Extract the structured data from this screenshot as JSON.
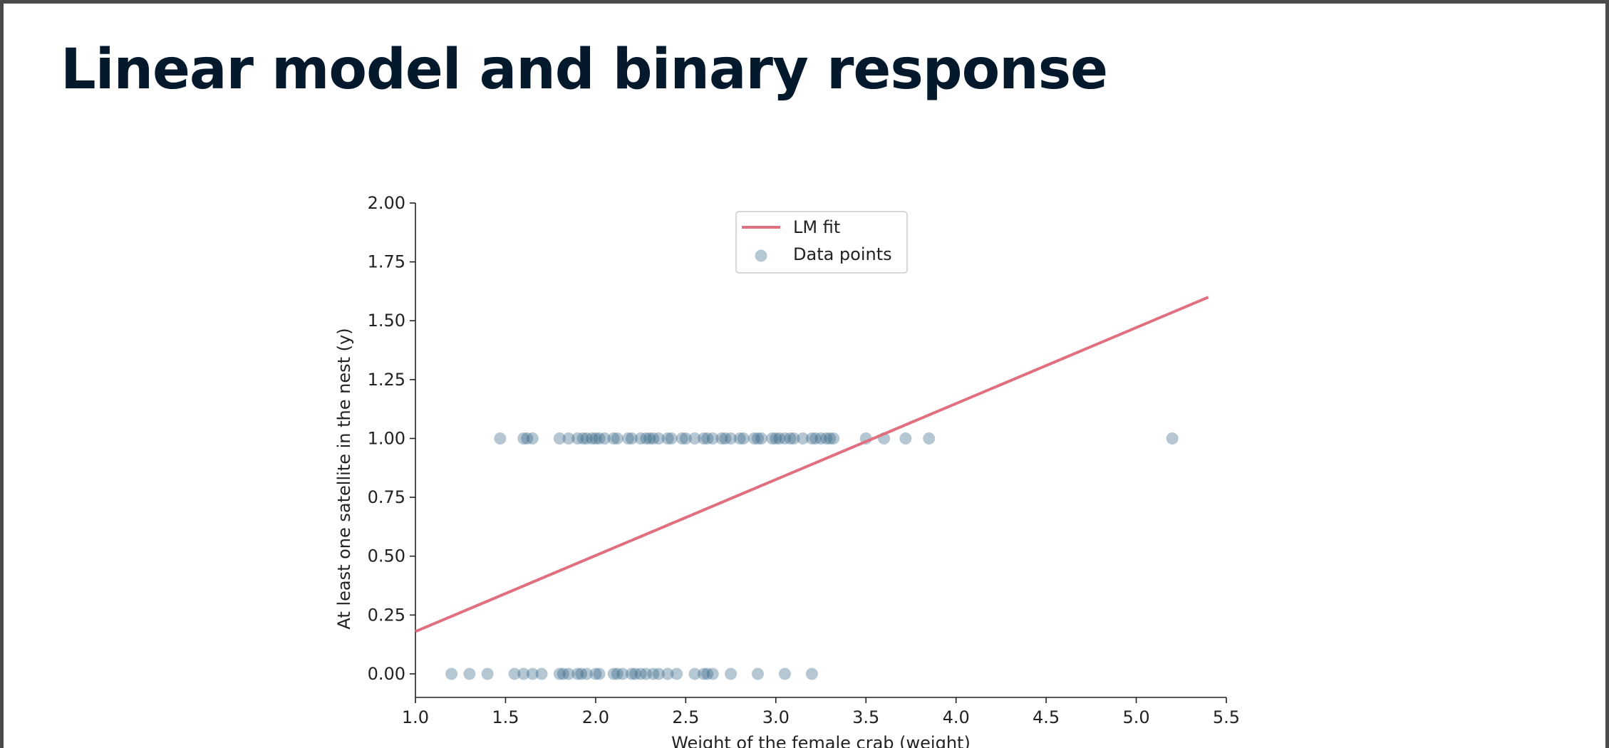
{
  "slide": {
    "title": "Linear model and binary response"
  },
  "colors": {
    "title": "#05192d",
    "fit_line": "#e07080",
    "points": "#2c5f80",
    "axis": "#222222"
  },
  "chart_data": {
    "type": "scatter",
    "title": "",
    "xlabel": "Weight of the female crab (weight)",
    "ylabel": "At least one satellite in the nest (y)",
    "xlim": [
      1.0,
      5.5
    ],
    "ylim": [
      -0.1,
      2.0
    ],
    "xticks": [
      "1.0",
      "1.5",
      "2.0",
      "2.5",
      "3.0",
      "3.5",
      "4.0",
      "4.5",
      "5.0",
      "5.5"
    ],
    "yticks": [
      "0.00",
      "0.25",
      "0.50",
      "0.75",
      "1.00",
      "1.25",
      "1.50",
      "1.75",
      "2.00"
    ],
    "grid": false,
    "legend_position": "top-center",
    "series": [
      {
        "name": "LM fit",
        "kind": "line",
        "x": [
          1.0,
          5.4
        ],
        "y": [
          0.18,
          1.6
        ]
      },
      {
        "name": "Data points",
        "kind": "scatter",
        "x": [
          1.47,
          1.6,
          1.62,
          1.65,
          1.8,
          1.85,
          1.9,
          1.93,
          1.95,
          1.98,
          2.0,
          2.02,
          2.05,
          2.1,
          2.12,
          2.18,
          2.2,
          2.25,
          2.28,
          2.3,
          2.32,
          2.35,
          2.4,
          2.42,
          2.48,
          2.5,
          2.55,
          2.6,
          2.62,
          2.65,
          2.7,
          2.72,
          2.75,
          2.8,
          2.82,
          2.88,
          2.9,
          2.92,
          2.98,
          3.0,
          3.02,
          3.05,
          3.08,
          3.1,
          3.15,
          3.2,
          3.22,
          3.25,
          3.28,
          3.3,
          3.32,
          3.5,
          3.6,
          3.72,
          3.85,
          5.2,
          1.2,
          1.3,
          1.4,
          1.55,
          1.6,
          1.65,
          1.7,
          1.8,
          1.82,
          1.85,
          1.9,
          1.92,
          1.95,
          2.0,
          2.02,
          2.1,
          2.12,
          2.15,
          2.2,
          2.22,
          2.25,
          2.28,
          2.32,
          2.35,
          2.4,
          2.45,
          2.55,
          2.6,
          2.62,
          2.65,
          2.75,
          2.9,
          3.05,
          3.2
        ],
        "y": [
          1,
          1,
          1,
          1,
          1,
          1,
          1,
          1,
          1,
          1,
          1,
          1,
          1,
          1,
          1,
          1,
          1,
          1,
          1,
          1,
          1,
          1,
          1,
          1,
          1,
          1,
          1,
          1,
          1,
          1,
          1,
          1,
          1,
          1,
          1,
          1,
          1,
          1,
          1,
          1,
          1,
          1,
          1,
          1,
          1,
          1,
          1,
          1,
          1,
          1,
          1,
          1,
          1,
          1,
          1,
          1,
          0,
          0,
          0,
          0,
          0,
          0,
          0,
          0,
          0,
          0,
          0,
          0,
          0,
          0,
          0,
          0,
          0,
          0,
          0,
          0,
          0,
          0,
          0,
          0,
          0,
          0,
          0,
          0,
          0,
          0,
          0,
          0,
          0,
          0
        ]
      }
    ]
  }
}
